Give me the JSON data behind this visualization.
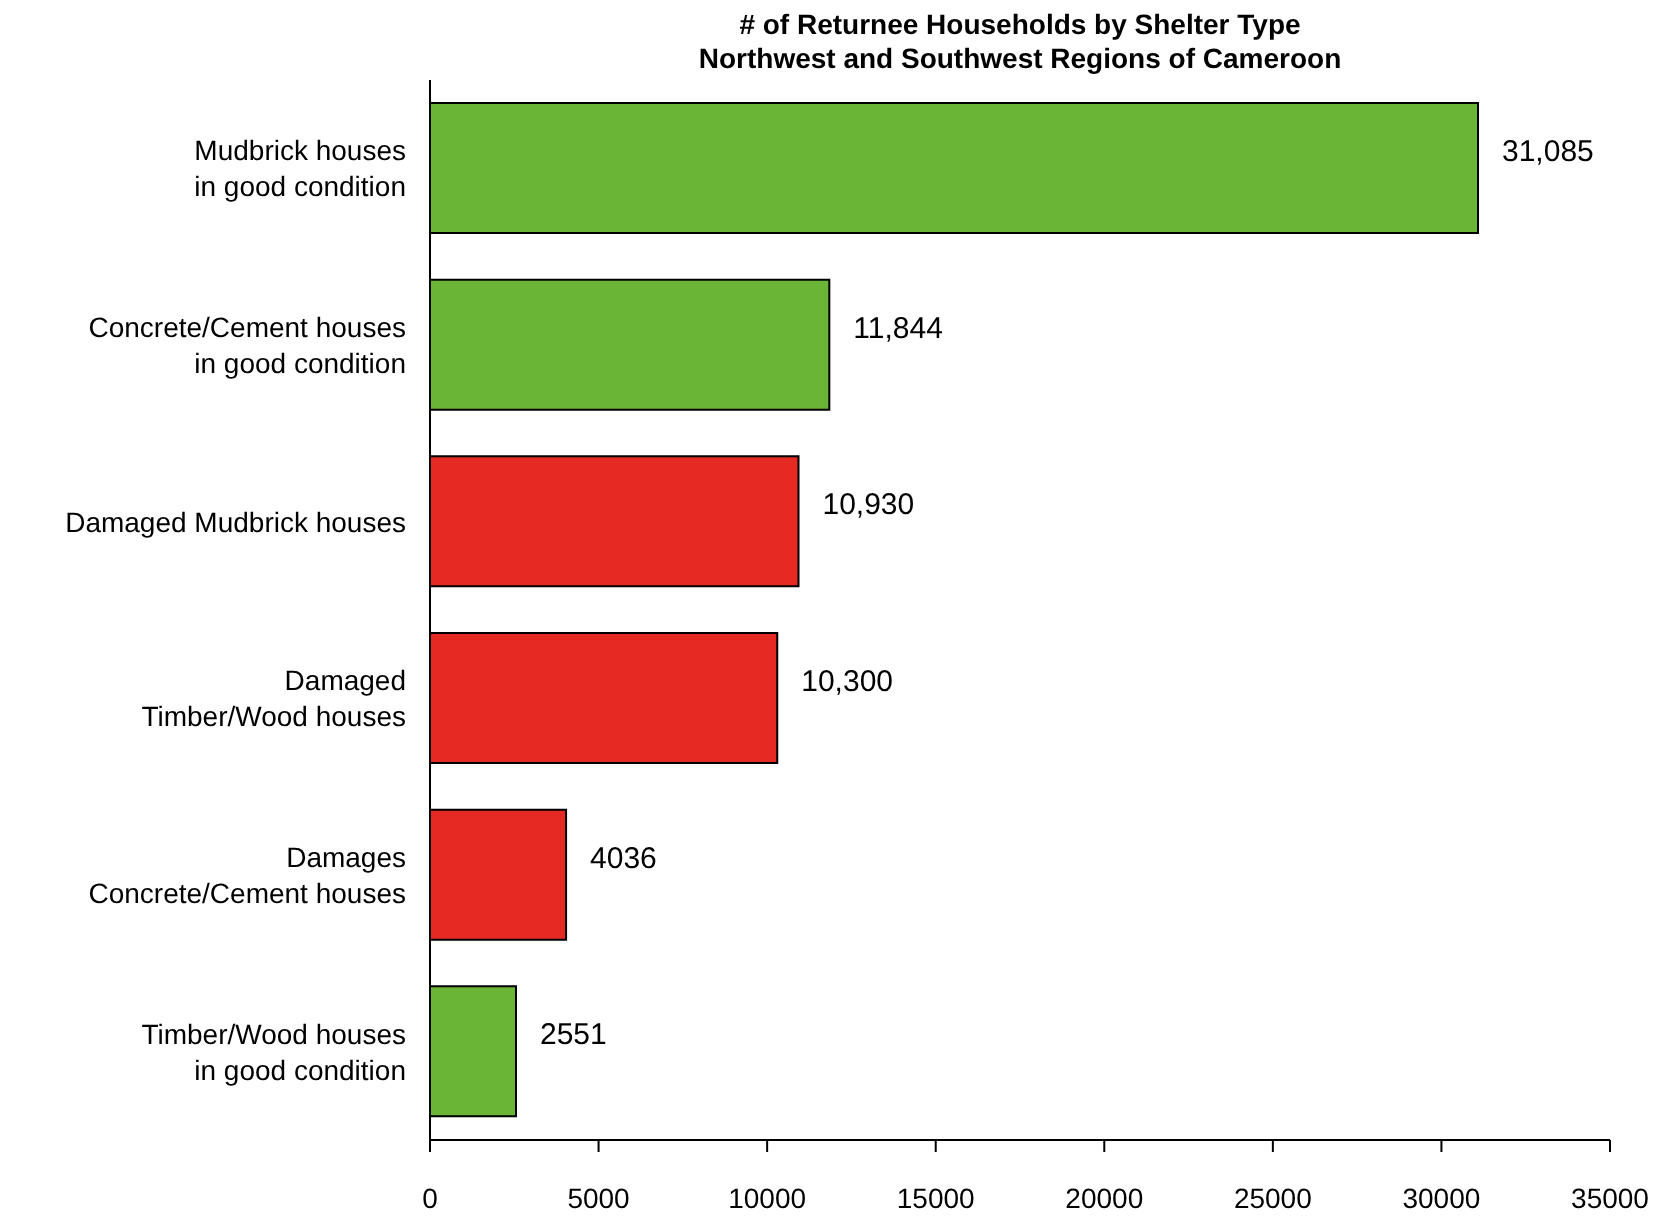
{
  "chart_data": {
    "type": "bar",
    "orientation": "horizontal",
    "title": "# of Returnee Households by Shelter Type",
    "subtitle": "Northwest and Southwest Regions of Cameroon",
    "categories": [
      "Mudbrick houses\nin good condition",
      "Concrete/Cement houses\nin good condition",
      "Damaged Mudbrick houses",
      "Damaged\nTimber/Wood houses",
      "Damages\nConcrete/Cement houses",
      "Timber/Wood houses\nin good condition"
    ],
    "values": [
      31085,
      11844,
      10930,
      10300,
      4036,
      2551
    ],
    "colors": [
      "#6ab535",
      "#6ab535",
      "#e42a23",
      "#e42a23",
      "#e42a23",
      "#6ab535"
    ],
    "value_labels": [
      "31,085",
      "11,844",
      "10,930",
      "10,300",
      "4036",
      "2551"
    ],
    "xlim": [
      0,
      35000
    ],
    "xticks": [
      0,
      5000,
      10000,
      15000,
      20000,
      25000,
      30000,
      35000
    ],
    "grid": false
  }
}
